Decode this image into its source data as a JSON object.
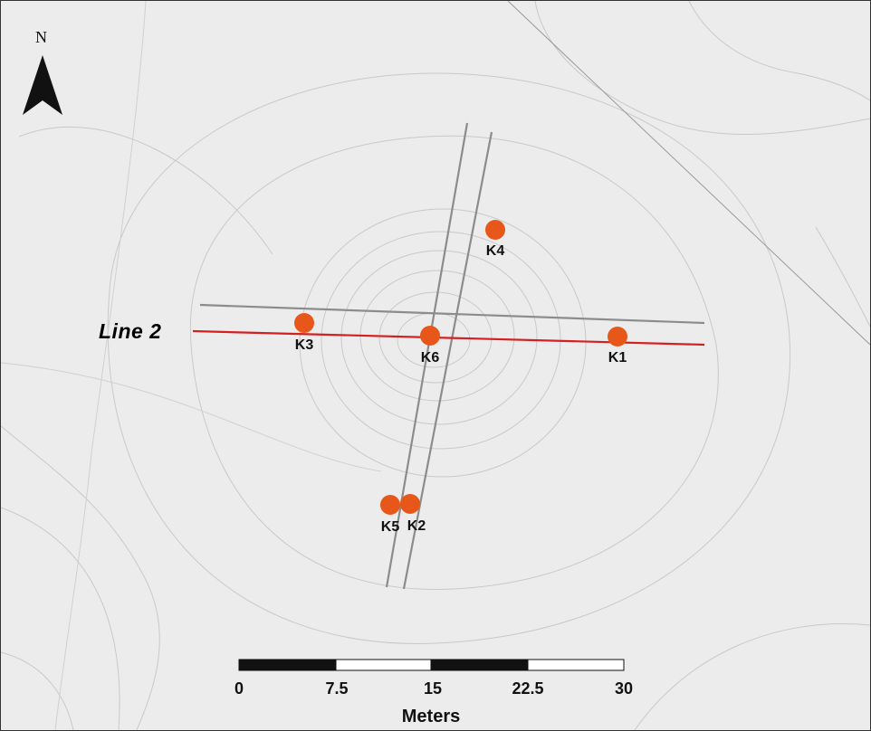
{
  "map": {
    "north_letter": "N",
    "line_label": "Line 2",
    "points": [
      {
        "id": "k1",
        "label": "K1"
      },
      {
        "id": "k2",
        "label": "K2"
      },
      {
        "id": "k3",
        "label": "K3"
      },
      {
        "id": "k4",
        "label": "K4"
      },
      {
        "id": "k5",
        "label": "K5"
      },
      {
        "id": "k6",
        "label": "K6"
      }
    ],
    "colors": {
      "background": "#ececec",
      "point": "#e8571a",
      "line_2": "#d32020",
      "survey_lines": "#8c8c8c",
      "contours": "#c8c8c8"
    }
  },
  "scale_bar": {
    "ticks": [
      "0",
      "7.5",
      "15",
      "22.5",
      "30"
    ],
    "units": "Meters"
  }
}
